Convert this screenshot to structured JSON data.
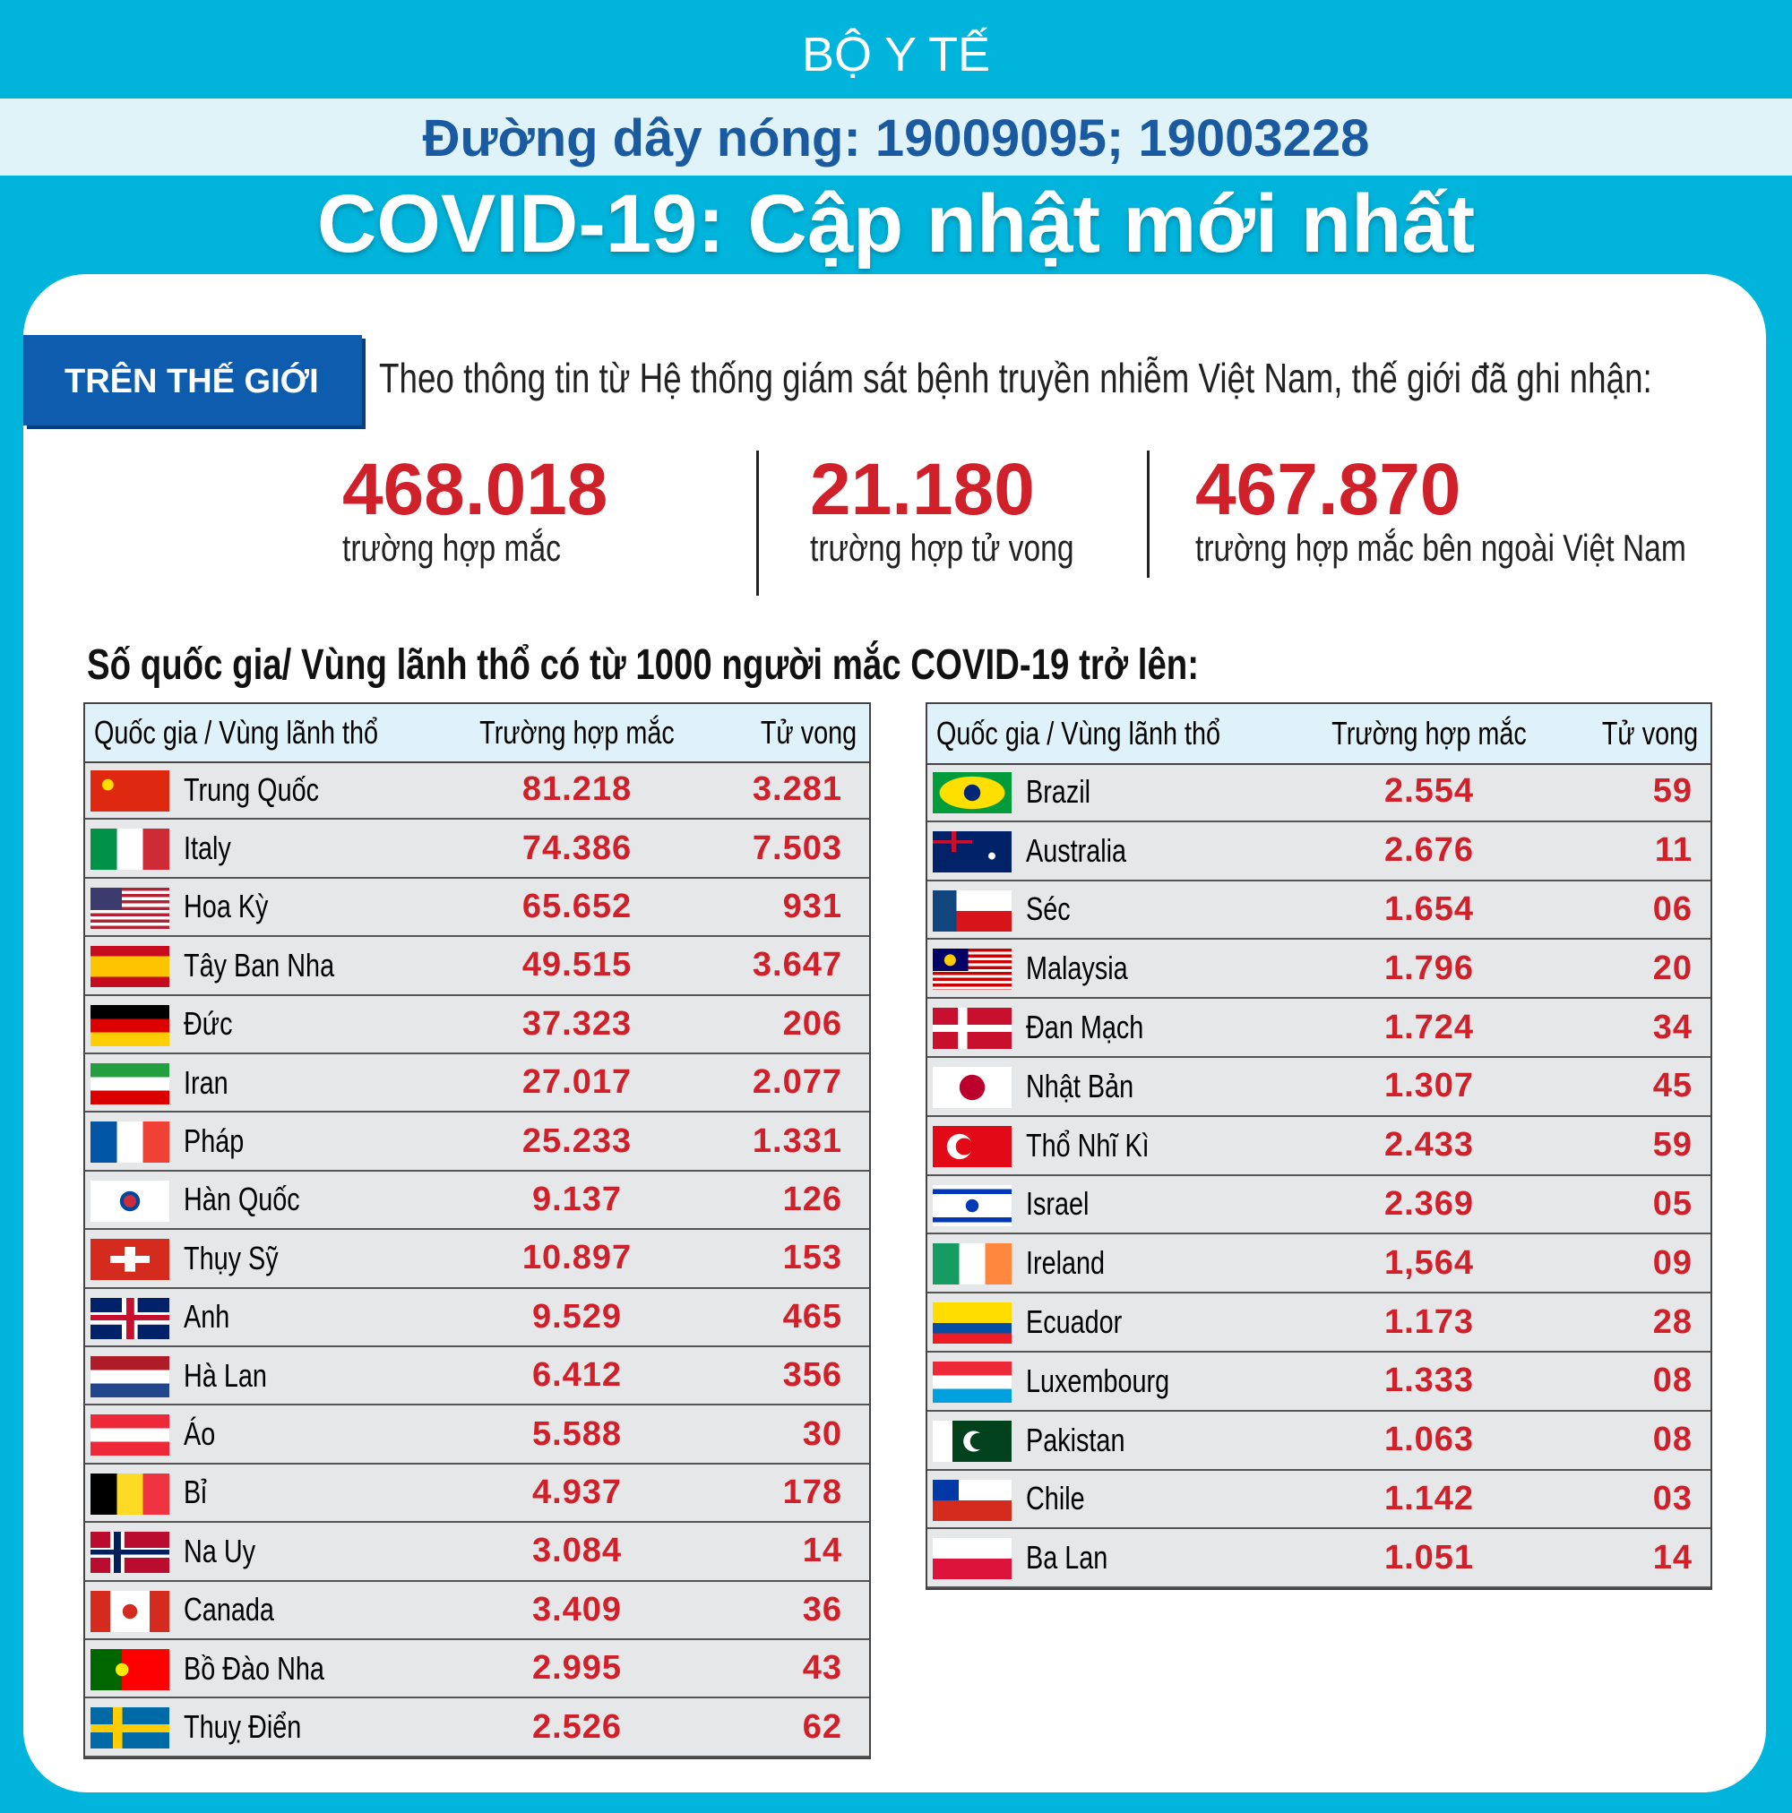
{
  "header": {
    "org": "BỘ Y TẾ",
    "hotline": "Đường dây nóng: 19009095; 19003228",
    "title": "COVID-19: Cập nhật mới nhất"
  },
  "section": {
    "label": "TRÊN THẾ GIỚI",
    "intro": "Theo thông tin từ Hệ thống giám sát bệnh truyền nhiễm Việt Nam, thế giới đã ghi nhận:"
  },
  "stats": [
    {
      "value": "468.018",
      "label": "trường hợp mắc"
    },
    {
      "value": "21.180",
      "label": "trường hợp tử vong"
    },
    {
      "value": "467.870",
      "label": "trường hợp  mắc bên ngoài Việt Nam"
    }
  ],
  "subtitle": "Số quốc gia/ Vùng lãnh thổ có từ 1000 người  mắc COVID-19 trở lên:",
  "tables": {
    "left": {
      "header": [
        "Quốc gia / Vùng lãnh thổ",
        "Trường hợp mắc",
        "Tử vong"
      ],
      "rows": [
        [
          "Trung Quốc",
          "81.218",
          "3.281"
        ],
        [
          "Italy",
          "74.386",
          "7.503"
        ],
        [
          "Hoa Kỳ",
          "65.652",
          "931"
        ],
        [
          "Tây Ban Nha",
          "49.515",
          "3.647"
        ],
        [
          "Đức",
          "37.323",
          "206"
        ],
        [
          "Iran",
          "27.017",
          "2.077"
        ],
        [
          "Pháp",
          "25.233",
          "1.331"
        ],
        [
          "Hàn Quốc",
          "9.137",
          "126"
        ],
        [
          "Thụy Sỹ",
          "10.897",
          "153"
        ],
        [
          "Anh",
          "9.529",
          "465"
        ],
        [
          "Hà Lan",
          "6.412",
          "356"
        ],
        [
          "Áo",
          "5.588",
          "30"
        ],
        [
          "Bỉ",
          "4.937",
          "178"
        ],
        [
          "Na Uy",
          "3.084",
          "14"
        ],
        [
          "Canada",
          "3.409",
          "36"
        ],
        [
          "Bồ Đào Nha",
          "2.995",
          "43"
        ],
        [
          "Thuỵ Điển",
          "2.526",
          "62"
        ]
      ]
    },
    "right": {
      "header": [
        "Quốc gia / Vùng lãnh thổ",
        "Trường hợp mắc",
        "Tử vong"
      ],
      "rows": [
        [
          "Brazil",
          "2.554",
          "59"
        ],
        [
          "Australia",
          "2.676",
          "11"
        ],
        [
          "Séc",
          "1.654",
          "06"
        ],
        [
          "Malaysia",
          "1.796",
          "20"
        ],
        [
          "Đan Mạch",
          "1.724",
          "34"
        ],
        [
          "Nhật Bản",
          "1.307",
          "45"
        ],
        [
          "Thổ Nhĩ Kì",
          "2.433",
          "59"
        ],
        [
          "Israel",
          "2.369",
          "05"
        ],
        [
          "Ireland",
          "1,564",
          "09"
        ],
        [
          "Ecuador",
          "1.173",
          "28"
        ],
        [
          "Luxembourg",
          "1.333",
          "08"
        ],
        [
          "Pakistan",
          "1.063",
          "08"
        ],
        [
          "Chile",
          "1.142",
          "03"
        ],
        [
          "Ba Lan",
          "1.051",
          "14"
        ]
      ]
    }
  }
}
